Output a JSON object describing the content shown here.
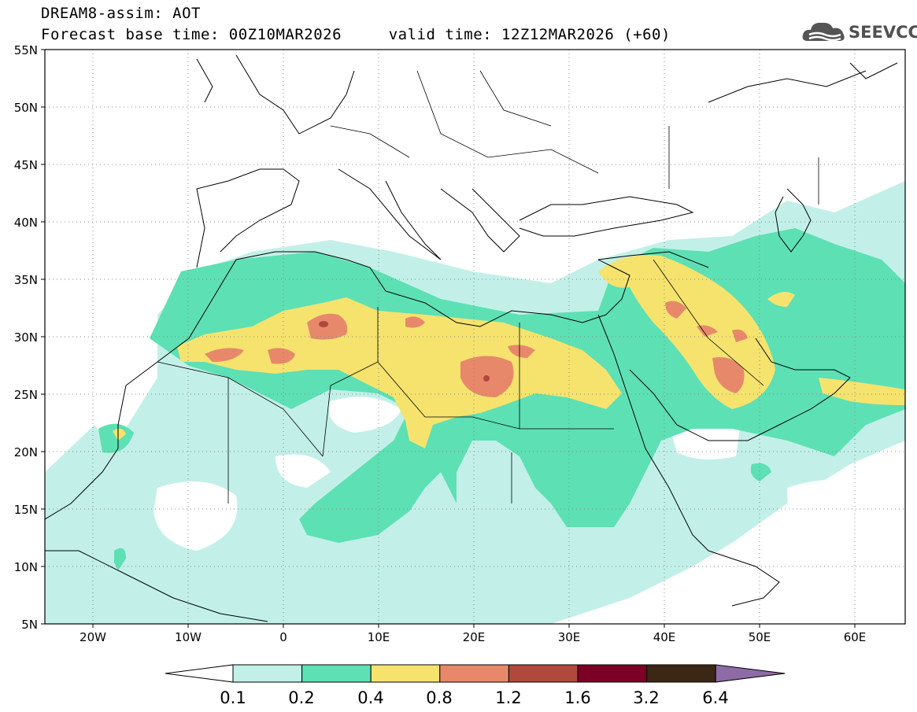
{
  "header": {
    "line1": "DREAM8-assim: AOT",
    "line2": "Forecast base time: 00Z10MAR2026     valid time: 12Z12MAR2026 (+60)"
  },
  "logo": {
    "text": "SEEVCCC",
    "icon": "cloud-icon"
  },
  "map": {
    "lon_range": [
      -25,
      65
    ],
    "lat_range": [
      5,
      55
    ],
    "lat_ticks": [
      "55N",
      "50N",
      "45N",
      "40N",
      "35N",
      "30N",
      "25N",
      "20N",
      "15N",
      "10N",
      "5N"
    ],
    "lon_ticks": [
      "20W",
      "10W",
      "0",
      "10E",
      "20E",
      "30E",
      "40E",
      "50E",
      "60E"
    ]
  },
  "legend": {
    "labels": [
      "0.1",
      "0.2",
      "0.4",
      "0.8",
      "1.2",
      "1.6",
      "3.2",
      "6.4"
    ],
    "colors": [
      "#ffffff",
      "#c2f0e8",
      "#5de0b4",
      "#f5e36e",
      "#e8886a",
      "#b0483e",
      "#7c0026",
      "#3b2714",
      "#8e6aa6"
    ]
  }
}
